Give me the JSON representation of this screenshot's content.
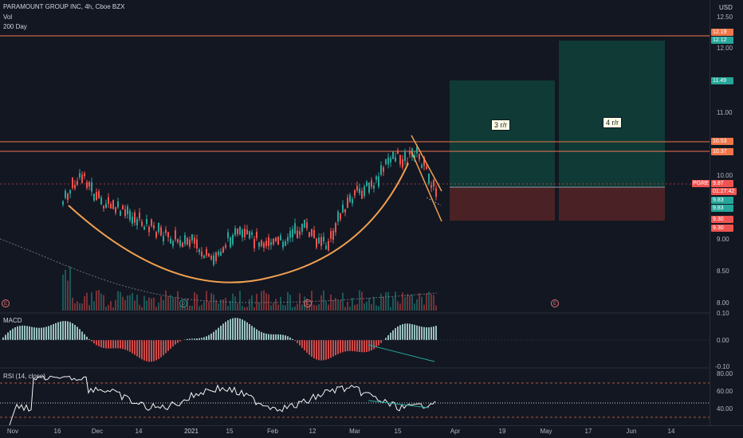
{
  "header": {
    "symbol": "PARAMOUNT GROUP INC, 4h, Cboe BZX",
    "vol_label": "Vol",
    "ma_label": "200 Day",
    "currency": "USD"
  },
  "price_axis": [
    "12.50",
    "12.00",
    "11.00",
    "10.00",
    "9.00",
    "8.50",
    "8.00"
  ],
  "price_tags": [
    {
      "text": "12.19",
      "color": "#f0764a"
    },
    {
      "text": "12.12",
      "color": "#26a69a"
    },
    {
      "text": "11.49",
      "color": "#26a69a"
    },
    {
      "text": "10.53",
      "color": "#f0764a"
    },
    {
      "text": "10.37",
      "color": "#f0764a"
    },
    {
      "text": "9.87",
      "color": "#ef5350"
    },
    {
      "text": "01:27:42",
      "color": "#ef5350"
    },
    {
      "text": "9.83",
      "color": "#26a69a"
    },
    {
      "text": "9.83",
      "color": "#26a69a"
    },
    {
      "text": "9.30",
      "color": "#ef5350"
    },
    {
      "text": "9.30",
      "color": "#ef5350"
    }
  ],
  "symbol_tag": "PGRE",
  "rr_labels": [
    "3 r/r",
    "4 r/r"
  ],
  "earnings_mark": "E",
  "dividend_mark": "D",
  "macd": {
    "label": "MACD",
    "axis": [
      "0.10",
      "0.00",
      "-0.10"
    ]
  },
  "rsi": {
    "label": "RSI (14, close)",
    "axis": [
      "80.00",
      "60.00",
      "40.00"
    ]
  },
  "x_axis": [
    "Nov",
    "16",
    "Dec",
    "14",
    "2021",
    "15",
    "Feb",
    "12",
    "Mar",
    "15",
    "Apr",
    "19",
    "May",
    "17",
    "Jun",
    "14"
  ],
  "colors": {
    "background": "#131722",
    "up": "#26a69a",
    "down": "#ef5350",
    "level_line": "#f0764a",
    "cup": "#f0a050",
    "profit_zone": "#0f3a36",
    "loss_zone": "#4a2226"
  }
}
